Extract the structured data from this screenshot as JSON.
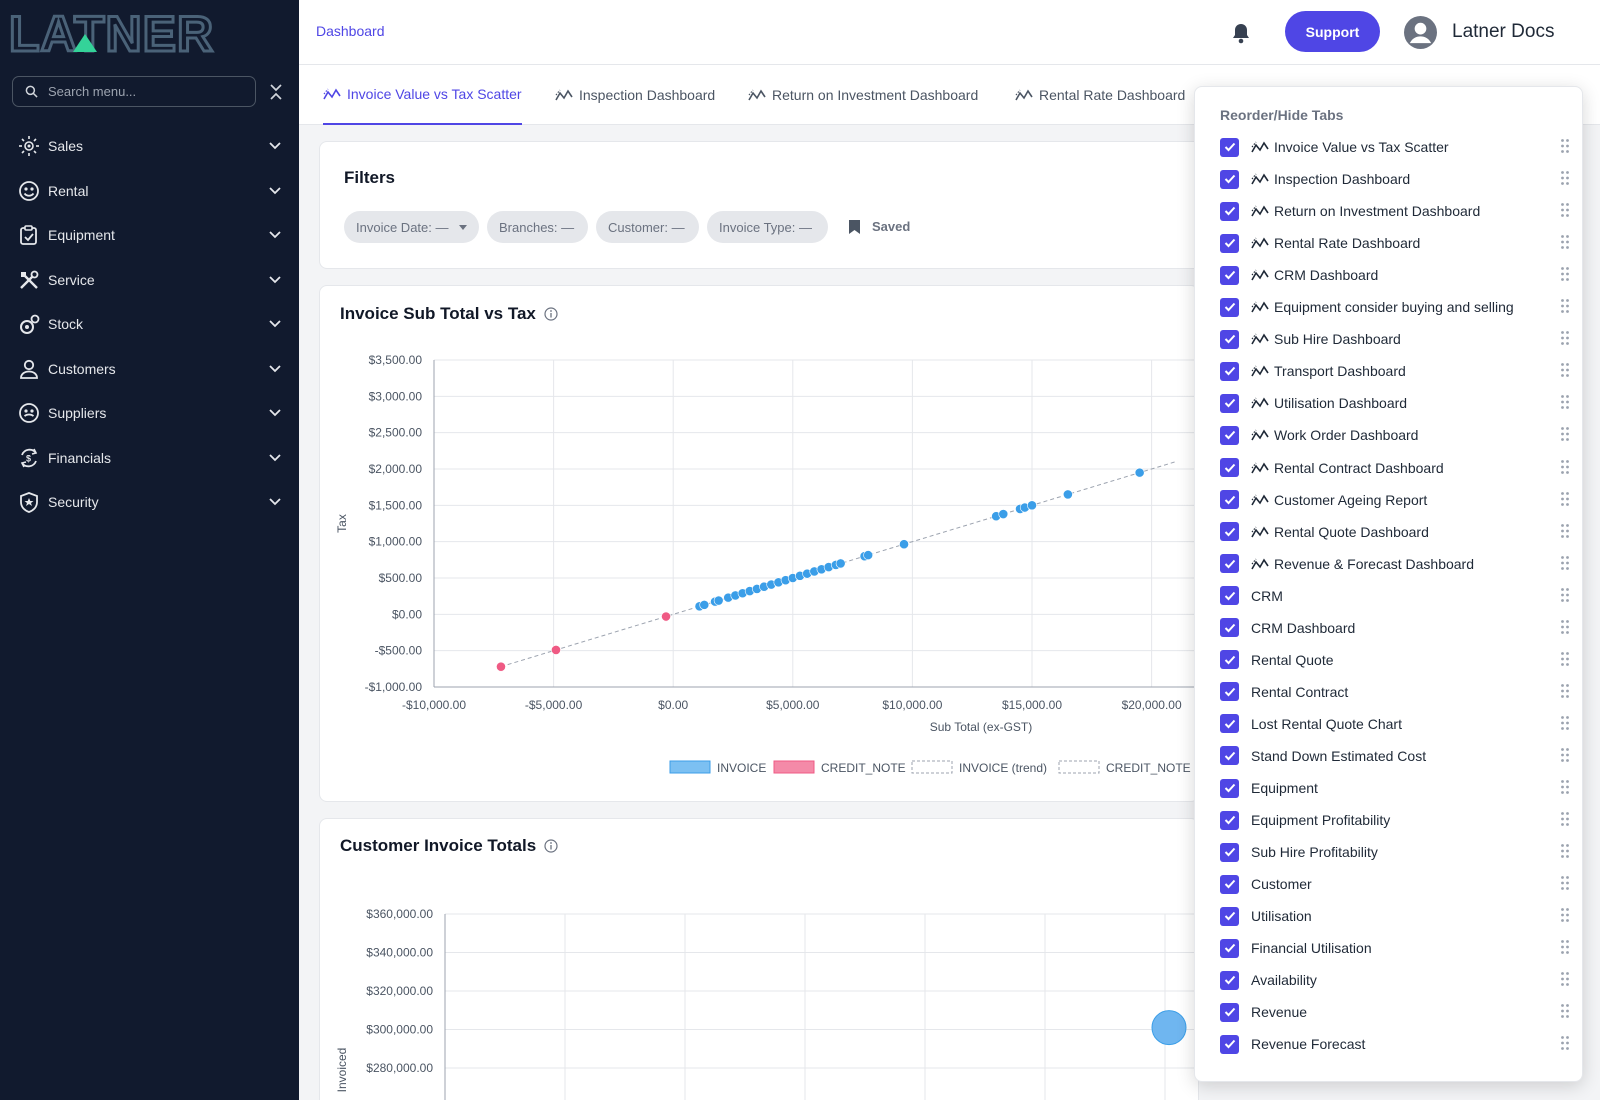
{
  "brand": {
    "logo_text": "LATNER"
  },
  "search": {
    "placeholder": "Search menu..."
  },
  "sidebar": {
    "items": [
      {
        "label": "Sales",
        "icon": "sales-icon"
      },
      {
        "label": "Rental",
        "icon": "rental-icon"
      },
      {
        "label": "Equipment",
        "icon": "equipment-icon"
      },
      {
        "label": "Service",
        "icon": "service-icon"
      },
      {
        "label": "Stock",
        "icon": "stock-icon"
      },
      {
        "label": "Customers",
        "icon": "user-icon"
      },
      {
        "label": "Suppliers",
        "icon": "suppliers-icon"
      },
      {
        "label": "Financials",
        "icon": "financials-icon"
      },
      {
        "label": "Security",
        "icon": "shield-icon"
      }
    ]
  },
  "header": {
    "breadcrumb": "Dashboard",
    "support_label": "Support",
    "user_name": "Latner Docs"
  },
  "tabs": [
    {
      "label": "Invoice Value vs Tax Scatter",
      "active": true
    },
    {
      "label": "Inspection Dashboard"
    },
    {
      "label": "Return on Investment Dashboard"
    },
    {
      "label": "Rental Rate Dashboard"
    }
  ],
  "filters": {
    "title": "Filters",
    "chips": [
      "Invoice Date: —",
      "Branches: —",
      "Customer: —",
      "Invoice Type: —"
    ],
    "saved_label": "Saved"
  },
  "panel": {
    "title": "Reorder/Hide Tabs",
    "items": [
      {
        "label": "Invoice Value vs Tax Scatter",
        "dash_icon": true,
        "checked": true
      },
      {
        "label": "Inspection Dashboard",
        "dash_icon": true,
        "checked": true
      },
      {
        "label": "Return on Investment Dashboard",
        "dash_icon": true,
        "checked": true
      },
      {
        "label": "Rental Rate Dashboard",
        "dash_icon": true,
        "checked": true
      },
      {
        "label": "CRM Dashboard",
        "dash_icon": true,
        "checked": true
      },
      {
        "label": "Equipment consider buying and selling",
        "dash_icon": true,
        "checked": true
      },
      {
        "label": "Sub Hire Dashboard",
        "dash_icon": true,
        "checked": true
      },
      {
        "label": "Transport Dashboard",
        "dash_icon": true,
        "checked": true
      },
      {
        "label": "Utilisation Dashboard",
        "dash_icon": true,
        "checked": true
      },
      {
        "label": "Work Order Dashboard",
        "dash_icon": true,
        "checked": true
      },
      {
        "label": "Rental Contract Dashboard",
        "dash_icon": true,
        "checked": true
      },
      {
        "label": "Customer Ageing Report",
        "dash_icon": true,
        "checked": true
      },
      {
        "label": "Rental Quote Dashboard",
        "dash_icon": true,
        "checked": true
      },
      {
        "label": "Revenue & Forecast Dashboard",
        "dash_icon": true,
        "checked": true
      },
      {
        "label": "CRM",
        "dash_icon": false,
        "checked": true
      },
      {
        "label": "CRM Dashboard",
        "dash_icon": false,
        "checked": true
      },
      {
        "label": "Rental Quote",
        "dash_icon": false,
        "checked": true
      },
      {
        "label": "Rental Contract",
        "dash_icon": false,
        "checked": true
      },
      {
        "label": "Lost Rental Quote Chart",
        "dash_icon": false,
        "checked": true
      },
      {
        "label": "Stand Down Estimated Cost",
        "dash_icon": false,
        "checked": true
      },
      {
        "label": "Equipment",
        "dash_icon": false,
        "checked": true
      },
      {
        "label": "Equipment Profitability",
        "dash_icon": false,
        "checked": true
      },
      {
        "label": "Sub Hire Profitability",
        "dash_icon": false,
        "checked": true
      },
      {
        "label": "Customer",
        "dash_icon": false,
        "checked": true
      },
      {
        "label": "Utilisation",
        "dash_icon": false,
        "checked": true
      },
      {
        "label": "Financial Utilisation",
        "dash_icon": false,
        "checked": true
      },
      {
        "label": "Availability",
        "dash_icon": false,
        "checked": true
      },
      {
        "label": "Revenue",
        "dash_icon": false,
        "checked": true
      },
      {
        "label": "Revenue Forecast",
        "dash_icon": false,
        "checked": true
      }
    ]
  },
  "colors": {
    "accent": "#4f46e5",
    "sidebar_bg": "#111a2e",
    "invoice": "#3b9ee8",
    "credit_note": "#ef5a84",
    "logo_green": "#34d399"
  },
  "chart_data": [
    {
      "type": "scatter",
      "title": "Invoice Sub Total vs Tax",
      "xlabel": "Sub Total (ex-GST)",
      "ylabel": "Tax",
      "xlim": [
        -10000,
        21000
      ],
      "ylim": [
        -1000,
        3500
      ],
      "x_ticks": [
        {
          "value": -10000,
          "label": "-$10,000.00"
        },
        {
          "value": -5000,
          "label": "-$5,000.00"
        },
        {
          "value": 0,
          "label": "$0.00"
        },
        {
          "value": 5000,
          "label": "$5,000.00"
        },
        {
          "value": 10000,
          "label": "$10,000.00"
        },
        {
          "value": 15000,
          "label": "$15,000.00"
        },
        {
          "value": 20000,
          "label": "$20,000.00"
        }
      ],
      "y_ticks": [
        {
          "value": -1000,
          "label": "-$1,000.00"
        },
        {
          "value": -500,
          "label": "-$500.00"
        },
        {
          "value": 0,
          "label": "$0.00"
        },
        {
          "value": 500,
          "label": "$500.00"
        },
        {
          "value": 1000,
          "label": "$1,000.00"
        },
        {
          "value": 1500,
          "label": "$1,500.00"
        },
        {
          "value": 2000,
          "label": "$2,000.00"
        },
        {
          "value": 2500,
          "label": "$2,500.00"
        },
        {
          "value": 3000,
          "label": "$3,000.00"
        },
        {
          "value": 3500,
          "label": "$3,500.00"
        }
      ],
      "legend": [
        "INVOICE",
        "CREDIT_NOTE",
        "INVOICE (trend)",
        "CREDIT_NOTE ("
      ],
      "series": [
        {
          "name": "INVOICE",
          "color": "#3b9ee8",
          "points": [
            [
              1100,
              110
            ],
            [
              1300,
              130
            ],
            [
              1750,
              175
            ],
            [
              1900,
              190
            ],
            [
              2300,
              230
            ],
            [
              2600,
              260
            ],
            [
              2900,
              290
            ],
            [
              3200,
              320
            ],
            [
              3500,
              350
            ],
            [
              3800,
              380
            ],
            [
              4100,
              410
            ],
            [
              4400,
              440
            ],
            [
              4700,
              470
            ],
            [
              5000,
              500
            ],
            [
              5300,
              530
            ],
            [
              5600,
              560
            ],
            [
              5900,
              590
            ],
            [
              6200,
              620
            ],
            [
              6500,
              650
            ],
            [
              6800,
              680
            ],
            [
              7000,
              700
            ],
            [
              8000,
              800
            ],
            [
              8150,
              815
            ],
            [
              9650,
              965
            ],
            [
              13500,
              1350
            ],
            [
              13800,
              1380
            ],
            [
              14500,
              1450
            ],
            [
              14700,
              1470
            ],
            [
              15000,
              1500
            ],
            [
              16500,
              1650
            ],
            [
              19500,
              1950
            ]
          ]
        },
        {
          "name": "CREDIT_NOTE",
          "color": "#ef5a84",
          "points": [
            [
              -7200,
              -720
            ],
            [
              -4900,
              -490
            ],
            [
              -300,
              -30
            ]
          ]
        }
      ]
    },
    {
      "type": "scatter",
      "title": "Customer Invoice Totals",
      "ylabel": "Invoiced",
      "ylim": [
        270000,
        360000
      ],
      "y_ticks": [
        {
          "value": 360000,
          "label": "$360,000.00"
        },
        {
          "value": 340000,
          "label": "$340,000.00"
        },
        {
          "value": 320000,
          "label": "$320,000.00"
        },
        {
          "value": 300000,
          "label": "$300,000.00"
        },
        {
          "value": 280000,
          "label": "$280,000.00"
        }
      ],
      "series": [
        {
          "color": "#3b9ee8",
          "points": [
            [
              6,
              301000
            ]
          ]
        }
      ]
    }
  ]
}
